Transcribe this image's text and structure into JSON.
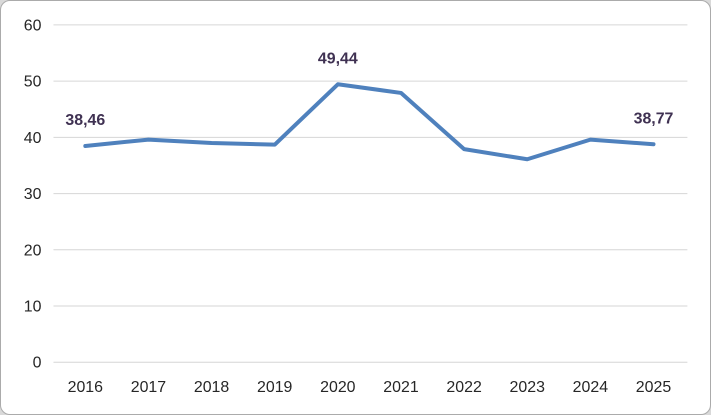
{
  "chart_data": {
    "type": "line",
    "title": "",
    "xlabel": "",
    "ylabel": "",
    "categories": [
      "2016",
      "2017",
      "2018",
      "2019",
      "2020",
      "2021",
      "2022",
      "2023",
      "2024",
      "2025"
    ],
    "series": [
      {
        "name": "series1",
        "values": [
          38.46,
          39.6,
          39.0,
          38.7,
          49.44,
          47.9,
          37.9,
          36.1,
          39.6,
          38.77
        ]
      }
    ],
    "data_labels": [
      {
        "index": 0,
        "text": "38,46"
      },
      {
        "index": 4,
        "text": "49,44"
      },
      {
        "index": 9,
        "text": "38,77"
      }
    ],
    "ylim": [
      0,
      60
    ],
    "yticks": [
      {
        "value": 0,
        "label": "0"
      },
      {
        "value": 10,
        "label": "10"
      },
      {
        "value": 20,
        "label": "20"
      },
      {
        "value": 30,
        "label": "30"
      },
      {
        "value": 40,
        "label": "40"
      },
      {
        "value": 50,
        "label": "50"
      },
      {
        "value": 60,
        "label": "60"
      }
    ],
    "grid": "horizontal",
    "legend": "none",
    "colors": {
      "line": "#4F81BD",
      "data_label": "#3F3152",
      "gridline": "#D6D6D6",
      "tick_label": "#262626",
      "plot_background": "#FFFFFF",
      "frame_border": "#ABABAB",
      "page_background": "#D9D9D9"
    }
  }
}
